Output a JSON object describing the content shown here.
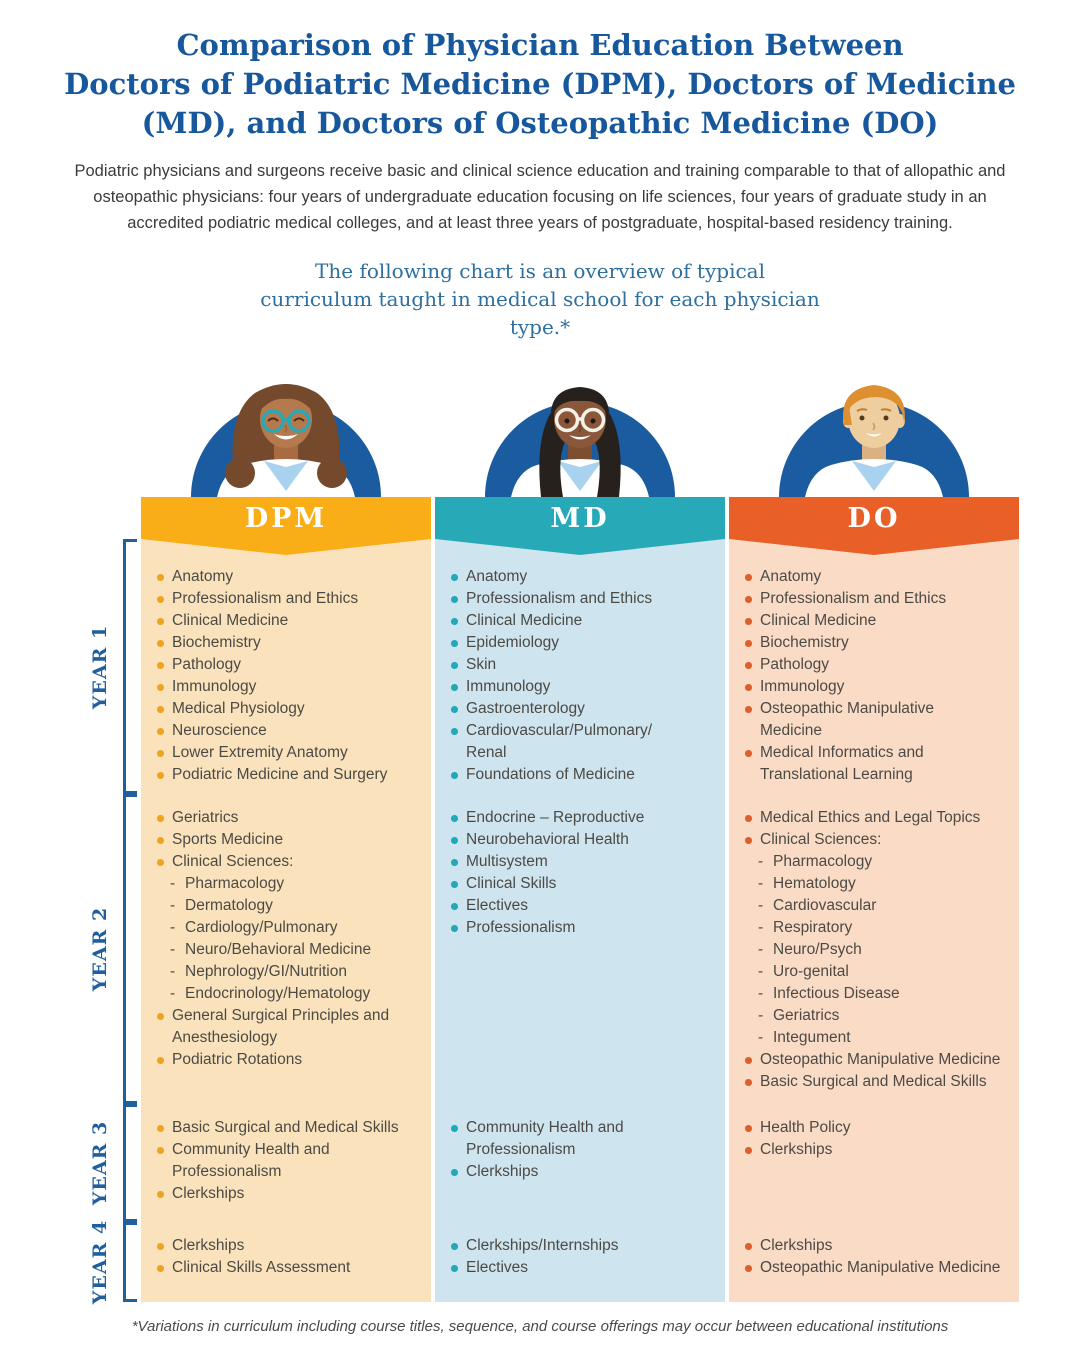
{
  "page": {
    "title_lines": [
      "Comparison of Physician Education Between",
      "Doctors of Podiatric Medicine (DPM), Doctors of Medicine",
      "(MD), and Doctors of Osteopathic Medicine (DO)"
    ],
    "intro": "Podiatric physicians and surgeons receive basic and clinical science education and training comparable to that of allopathic and osteopathic physicians: four years of undergraduate education focusing on life sciences, four years of graduate study in an accredited podiatric medical colleges, and at least three years of postgraduate, hospital-based residency training.",
    "subtitle": "The following chart is an overview of typical curriculum taught in medical school for each physician type.*",
    "footnote": "*Variations in curriculum including course titles, sequence, and course offerings may occur between educational institutions"
  },
  "colors": {
    "title_blue": "#17579C",
    "body_text": "#3B3B3B",
    "subtitle_blue": "#2D6F9E",
    "year_label_blue": "#1F5F9E",
    "list_text": "#4C4A45",
    "footnote_text": "#4A4A4A",
    "header_text": "#FFFFFF",
    "avatar_circle": "#1A5C9F",
    "dpm_header": "#F9AE17",
    "dpm_body": "#FAE3BC",
    "dpm_bullet": "#EEA41F",
    "md_header": "#27A9B7",
    "md_body": "#CEE4EF",
    "md_bullet": "#21A9B8",
    "do_header": "#E85F28",
    "do_body": "#FADCC6",
    "do_bullet": "#DE5F2B"
  },
  "year_labels": [
    "YEAR 1",
    "YEAR 2",
    "YEAR 3",
    "YEAR 4"
  ],
  "columns": [
    {
      "id": "dpm",
      "header": "DPM",
      "avatar": "woman-brown-curly-hair-teal-glasses-white-coat",
      "years": [
        [
          {
            "text": "Anatomy"
          },
          {
            "text": "Professionalism and Ethics"
          },
          {
            "text": "Clinical Medicine"
          },
          {
            "text": "Biochemistry"
          },
          {
            "text": "Pathology"
          },
          {
            "text": "Immunology"
          },
          {
            "text": "Medical Physiology"
          },
          {
            "text": "Neuroscience"
          },
          {
            "text": "Lower Extremity Anatomy"
          },
          {
            "text": "Podiatric Medicine and Surgery"
          }
        ],
        [
          {
            "text": "Geriatrics"
          },
          {
            "text": "Sports Medicine"
          },
          {
            "text": "Clinical Sciences:"
          },
          {
            "text": "Pharmacology",
            "dash": true
          },
          {
            "text": "Dermatology",
            "dash": true
          },
          {
            "text": "Cardiology/Pulmonary",
            "dash": true
          },
          {
            "text": "Neuro/Behavioral Medicine",
            "dash": true
          },
          {
            "text": "Nephrology/GI/Nutrition",
            "dash": true
          },
          {
            "text": "Endocrinology/Hematology",
            "dash": true
          },
          {
            "text": "General Surgical Principles and\nAnesthesiology"
          },
          {
            "text": "Podiatric Rotations"
          }
        ],
        [
          {
            "text": "Basic Surgical and Medical Skills"
          },
          {
            "text": "Community Health and\nProfessionalism"
          },
          {
            "text": "Clerkships"
          }
        ],
        [
          {
            "text": "Clerkships"
          },
          {
            "text": "Clinical Skills Assessment"
          }
        ]
      ]
    },
    {
      "id": "md",
      "header": "MD",
      "avatar": "woman-long-black-hair-white-glasses-white-coat",
      "years": [
        [
          {
            "text": "Anatomy"
          },
          {
            "text": "Professionalism and Ethics"
          },
          {
            "text": "Clinical Medicine"
          },
          {
            "text": "Epidemiology"
          },
          {
            "text": "Skin"
          },
          {
            "text": "Immunology"
          },
          {
            "text": "Gastroenterology"
          },
          {
            "text": "Cardiovascular/Pulmonary/\nRenal"
          },
          {
            "text": "Foundations of Medicine"
          }
        ],
        [
          {
            "text": "Endocrine – Reproductive"
          },
          {
            "text": "Neurobehavioral Health"
          },
          {
            "text": "Multisystem"
          },
          {
            "text": "Clinical Skills"
          },
          {
            "text": "Electives"
          },
          {
            "text": "Professionalism"
          }
        ],
        [
          {
            "text": "Community Health and\nProfessionalism"
          },
          {
            "text": "Clerkships"
          }
        ],
        [
          {
            "text": "Clerkships/Internships"
          },
          {
            "text": "Electives"
          }
        ]
      ]
    },
    {
      "id": "do",
      "header": "DO",
      "avatar": "person-orange-hair-white-coat",
      "years": [
        [
          {
            "text": "Anatomy"
          },
          {
            "text": "Professionalism and Ethics"
          },
          {
            "text": "Clinical Medicine"
          },
          {
            "text": "Biochemistry"
          },
          {
            "text": "Pathology"
          },
          {
            "text": "Immunology"
          },
          {
            "text": "Osteopathic Manipulative\nMedicine"
          },
          {
            "text": "Medical Informatics and\nTranslational Learning"
          }
        ],
        [
          {
            "text": "Medical Ethics and Legal Topics"
          },
          {
            "text": "Clinical Sciences:"
          },
          {
            "text": "Pharmacology",
            "dash": true
          },
          {
            "text": "Hematology",
            "dash": true
          },
          {
            "text": "Cardiovascular",
            "dash": true
          },
          {
            "text": "Respiratory",
            "dash": true
          },
          {
            "text": "Neuro/Psych",
            "dash": true
          },
          {
            "text": "Uro-genital",
            "dash": true
          },
          {
            "text": "Infectious Disease",
            "dash": true
          },
          {
            "text": "Geriatrics",
            "dash": true
          },
          {
            "text": "Integument",
            "dash": true
          },
          {
            "text": "Osteopathic Manipulative Medicine"
          },
          {
            "text": "Basic Surgical and Medical Skills"
          }
        ],
        [
          {
            "text": "Health Policy"
          },
          {
            "text": "Clerkships"
          }
        ],
        [
          {
            "text": "Clerkships"
          },
          {
            "text": "Osteopathic Manipulative Medicine"
          }
        ]
      ]
    }
  ]
}
